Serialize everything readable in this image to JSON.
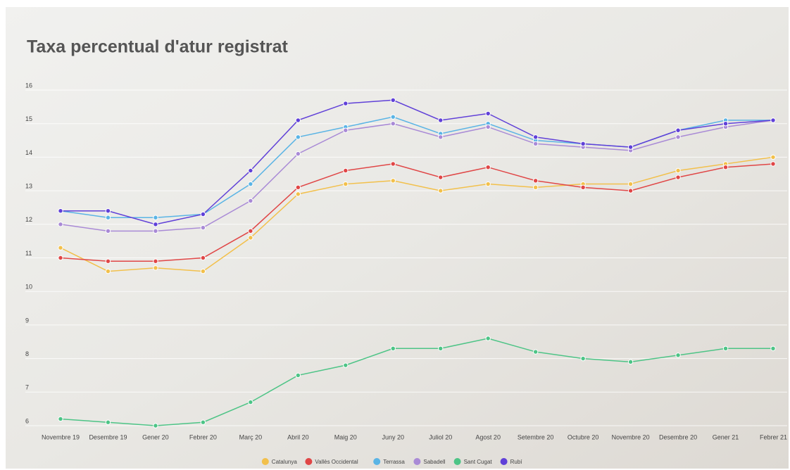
{
  "chart_data": {
    "type": "line",
    "title": "Taxa percentual d'atur registrat",
    "categories": [
      "Novembre 19",
      "Desembre 19",
      "Gener 20",
      "Febrer 20",
      "Març 20",
      "Abril 20",
      "Maig 20",
      "Juny 20",
      "Juliol 20",
      "Agost 20",
      "Setembre 20",
      "Octubre 20",
      "Novembre 20",
      "Desembre 20",
      "Gener 21",
      "Febrer 21"
    ],
    "ylim": [
      6,
      16
    ],
    "yticks": [
      6,
      7,
      8,
      9,
      10,
      11,
      12,
      13,
      14,
      15,
      16
    ],
    "grid": true,
    "series": [
      {
        "name": "Catalunya",
        "color": "#f2c04b",
        "values": [
          11.3,
          10.6,
          10.7,
          10.6,
          11.6,
          12.9,
          13.2,
          13.3,
          13.0,
          13.2,
          13.1,
          13.2,
          13.2,
          13.6,
          13.8,
          14.0
        ]
      },
      {
        "name": "Vallès Occidental",
        "color": "#e04646",
        "values": [
          11.0,
          10.9,
          10.9,
          11.0,
          11.8,
          13.1,
          13.6,
          13.8,
          13.4,
          13.7,
          13.3,
          13.1,
          13.0,
          13.4,
          13.7,
          13.8
        ]
      },
      {
        "name": "Terrassa",
        "color": "#5ab4e5",
        "values": [
          12.4,
          12.2,
          12.2,
          12.3,
          13.2,
          14.6,
          14.9,
          15.2,
          14.7,
          15.0,
          14.5,
          14.4,
          14.3,
          14.8,
          15.1,
          15.1
        ]
      },
      {
        "name": "Sabadell",
        "color": "#a98ad6",
        "values": [
          12.0,
          11.8,
          11.8,
          11.9,
          12.7,
          14.1,
          14.8,
          15.0,
          14.6,
          14.9,
          14.4,
          14.3,
          14.2,
          14.6,
          14.9,
          15.1
        ]
      },
      {
        "name": "Sant Cugat",
        "color": "#4dc486",
        "values": [
          6.2,
          6.1,
          6.0,
          6.1,
          6.7,
          7.5,
          7.8,
          8.3,
          8.3,
          8.6,
          8.2,
          8.0,
          7.9,
          8.1,
          8.3,
          8.3
        ]
      },
      {
        "name": "Rubí",
        "color": "#6040d8",
        "values": [
          12.4,
          12.4,
          12.0,
          12.3,
          13.6,
          15.1,
          15.6,
          15.7,
          15.1,
          15.3,
          14.6,
          14.4,
          14.3,
          14.8,
          15.0,
          15.1
        ]
      }
    ]
  }
}
